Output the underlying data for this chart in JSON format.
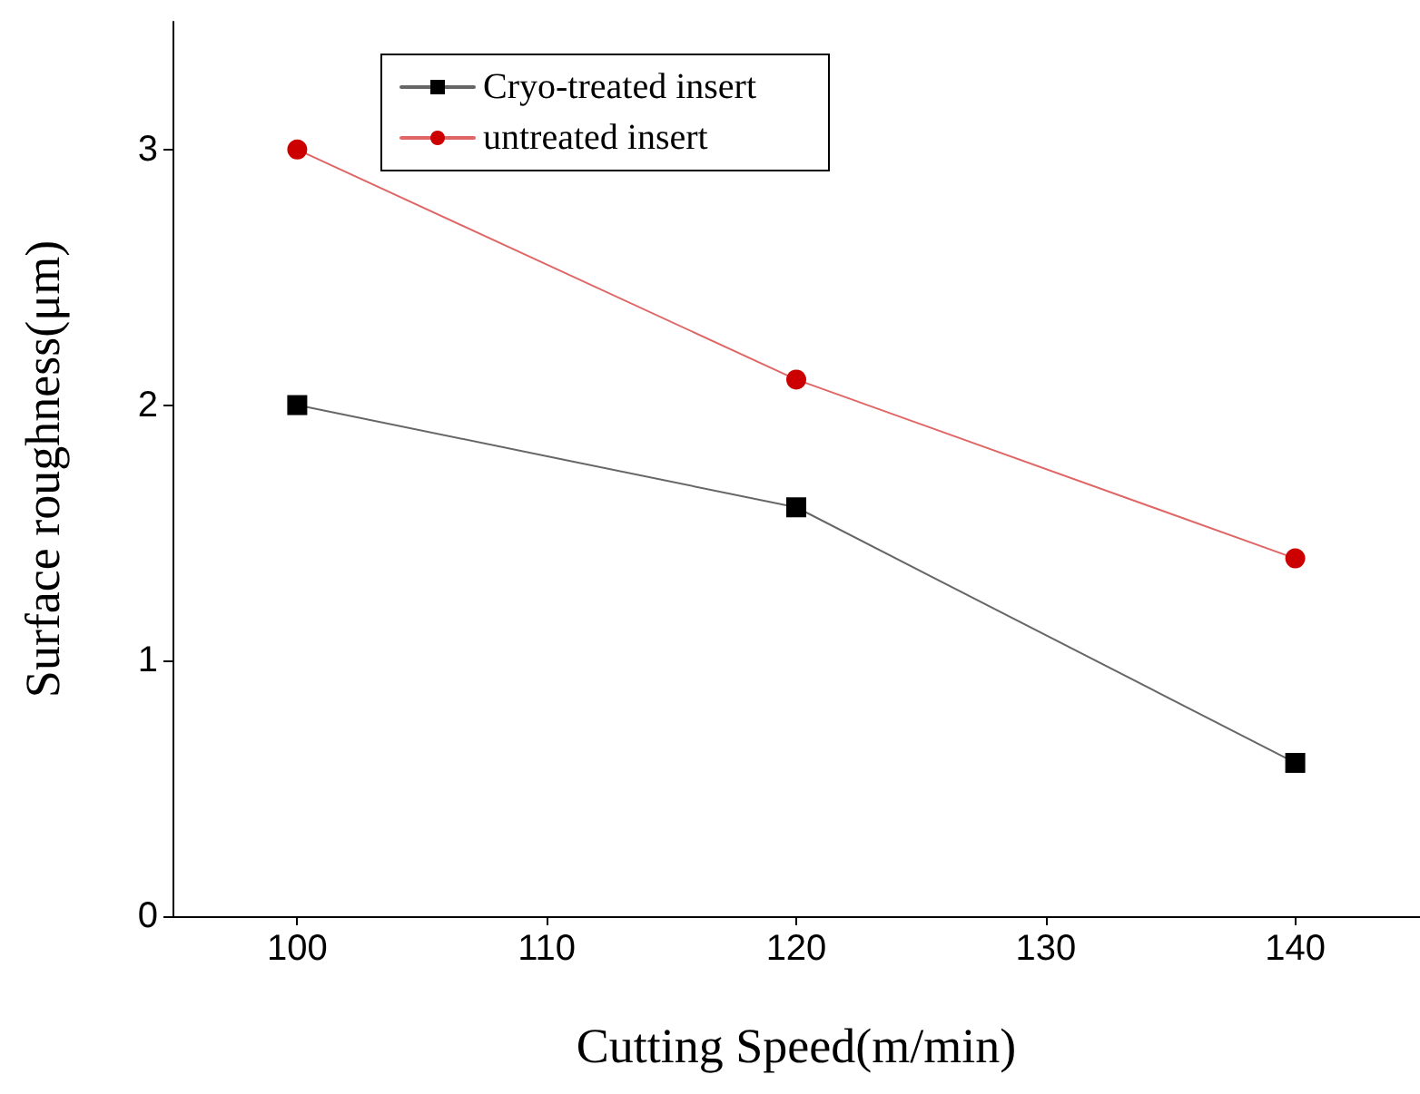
{
  "chart_data": {
    "type": "line",
    "xlabel": "Cutting Speed(m/min)",
    "ylabel": "Surface roughness(μm)",
    "x": [
      100,
      120,
      140
    ],
    "series": [
      {
        "name": "Cryo-treated insert",
        "color": "#000000",
        "marker": "square",
        "values": [
          2,
          1.6,
          0.6
        ]
      },
      {
        "name": "untreated insert",
        "color": "#cc0000",
        "marker": "circle",
        "values": [
          3,
          2.1,
          1.4
        ]
      }
    ],
    "xlim": [
      95,
      145
    ],
    "xticks": [
      100,
      110,
      120,
      130,
      140
    ],
    "ylim": [
      0,
      3.5
    ],
    "yticks": [
      0,
      1,
      2,
      3
    ],
    "grid": false,
    "legend": "top left",
    "line_style": "solid"
  }
}
